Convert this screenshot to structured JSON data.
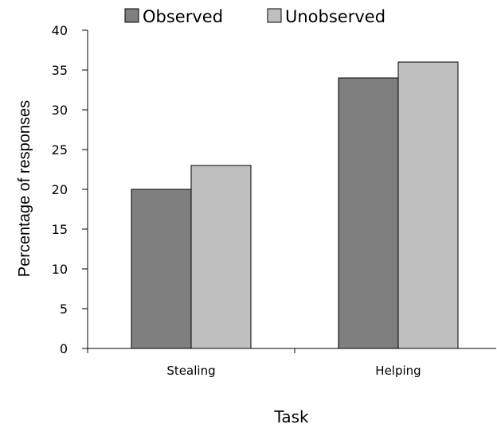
{
  "chart_data": {
    "type": "bar",
    "categories": [
      "Stealing",
      "Helping"
    ],
    "series": [
      {
        "name": "Observed",
        "values": [
          20,
          34
        ],
        "color": "#7f7f7f"
      },
      {
        "name": "Unobserved",
        "values": [
          23,
          36
        ],
        "color": "#bfbfbf"
      }
    ],
    "xlabel": "Task",
    "ylabel": "Percentage of responses",
    "ylim": [
      0,
      40
    ],
    "yticks": [
      0,
      5,
      10,
      15,
      20,
      25,
      30,
      35,
      40
    ],
    "grid": false,
    "legend_position": "top"
  }
}
